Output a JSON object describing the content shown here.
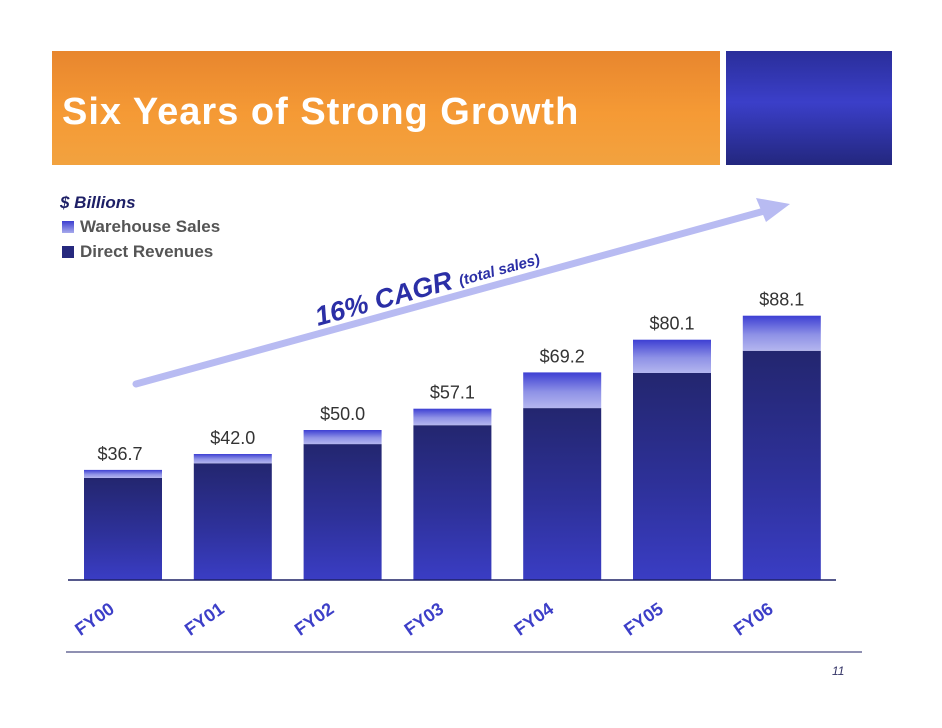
{
  "title": "Six Years of Strong Growth",
  "page_number": "11",
  "colors": {
    "header_orange": "#f59a35",
    "header_blue": "#3b3fc9",
    "direct_revenues": "#26297e",
    "warehouse_sales": "#a6a9ec",
    "label_blue": "#3d3fc8"
  },
  "chart_data": {
    "type": "bar",
    "stacked": true,
    "unit_label": "$ Billions",
    "categories": [
      "FY00",
      "FY01",
      "FY02",
      "FY03",
      "FY04",
      "FY05",
      "FY06"
    ],
    "series": [
      {
        "name": "Direct Revenues",
        "values": [
          34.0,
          38.9,
          45.3,
          51.6,
          57.3,
          69.0,
          76.4
        ]
      },
      {
        "name": "Warehouse Sales",
        "values": [
          2.7,
          3.1,
          4.7,
          5.5,
          11.9,
          11.1,
          11.7
        ]
      }
    ],
    "totals_labels": [
      "$36.7",
      "$42.0",
      "$50.0",
      "$57.1",
      "$69.2",
      "$80.1",
      "$88.1"
    ],
    "totals": [
      36.7,
      42.0,
      50.0,
      57.1,
      69.2,
      80.1,
      88.1
    ],
    "ylim": [
      0,
      110
    ],
    "legend_position": "top-left",
    "grid": false,
    "annotation": {
      "main": "16% CAGR",
      "sub": "(total sales)"
    }
  }
}
